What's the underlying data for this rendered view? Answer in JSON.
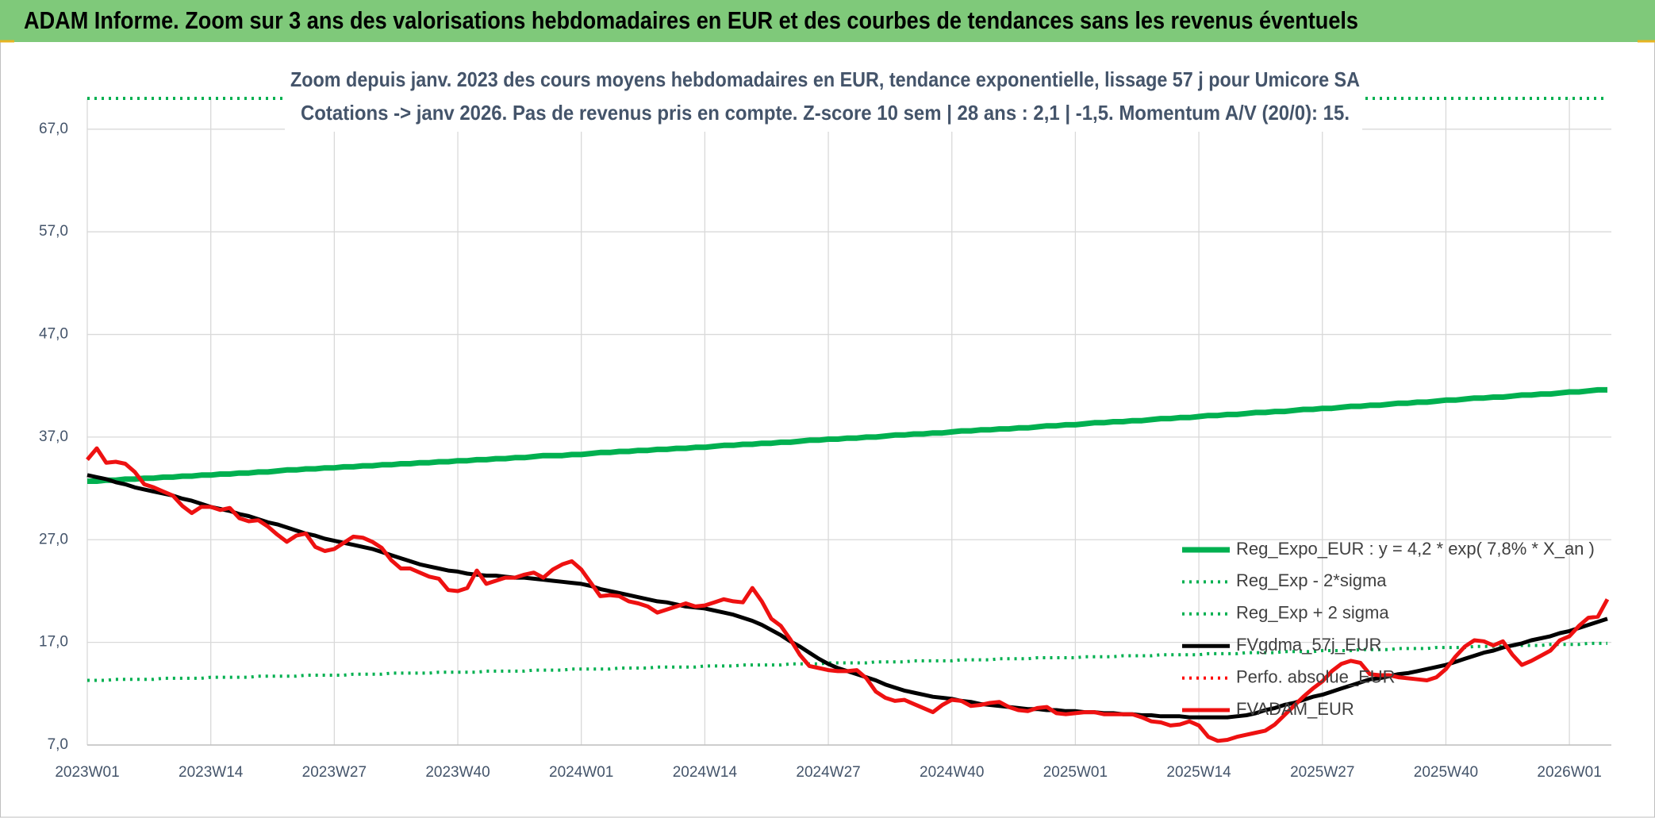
{
  "chart_data": {
    "type": "line",
    "title": "ADAM Informe. Zoom sur 3 ans des valorisations hebdomadaires en EUR et des courbes de tendances sans les revenus éventuels",
    "subtitle": [
      "Zoom depuis janv. 2023 des cours moyens hebdomadaires en EUR, tendance exponentielle, lissage 57 j pour Umicore SA",
      "Cotations -> janv 2026. Pas de revenus pris en compte. Z-score 10 sem | 28 ans : 2,1 | -1,5. Momentum A/V (20/0): 15."
    ],
    "categories": [
      "2023W01",
      null,
      null,
      null,
      null,
      null,
      null,
      null,
      null,
      null,
      null,
      null,
      null,
      "2023W14",
      null,
      null,
      null,
      null,
      null,
      null,
      null,
      null,
      null,
      null,
      null,
      null,
      "2023W27",
      null,
      null,
      null,
      null,
      null,
      null,
      null,
      null,
      null,
      null,
      null,
      null,
      "2023W40",
      null,
      null,
      null,
      null,
      null,
      null,
      null,
      null,
      null,
      null,
      null,
      null,
      "2024W01",
      null,
      null,
      null,
      null,
      null,
      null,
      null,
      null,
      null,
      null,
      null,
      null,
      "2024W14",
      null,
      null,
      null,
      null,
      null,
      null,
      null,
      null,
      null,
      null,
      null,
      null,
      "2024W27",
      null,
      null,
      null,
      null,
      null,
      null,
      null,
      null,
      null,
      null,
      null,
      null,
      "2024W40",
      null,
      null,
      null,
      null,
      null,
      null,
      null,
      null,
      null,
      null,
      null,
      null,
      "2025W01",
      null,
      null,
      null,
      null,
      null,
      null,
      null,
      null,
      null,
      null,
      null,
      null,
      "2025W14",
      null,
      null,
      null,
      null,
      null,
      null,
      null,
      null,
      null,
      null,
      null,
      null,
      "2025W27",
      null,
      null,
      null,
      null,
      null,
      null,
      null,
      null,
      null,
      null,
      null,
      null,
      "2025W40",
      null,
      null,
      null,
      null,
      null,
      null,
      null,
      null,
      null,
      null,
      null,
      null,
      "2026W01",
      null,
      null,
      null,
      null
    ],
    "ylim": [
      7,
      70
    ],
    "yticks": [
      {
        "value": 7,
        "label": "7,0"
      },
      {
        "value": 17,
        "label": "17,0"
      },
      {
        "value": 27,
        "label": "27,0"
      },
      {
        "value": 37,
        "label": "37,0"
      },
      {
        "value": 47,
        "label": "47,0"
      },
      {
        "value": 57,
        "label": "57,0"
      },
      {
        "value": 67,
        "label": "67,0"
      }
    ],
    "grid": true,
    "legend": "lower right",
    "series": [
      {
        "name": "Reg_Expo_EUR : y = 4,2 * exp( 7,8% *  X_an )",
        "color": "#00b050",
        "style": "solid",
        "values": [
          32.7,
          32.7,
          32.8,
          32.8,
          32.9,
          32.9,
          33.0,
          33.0,
          33.1,
          33.1,
          33.2,
          33.2,
          33.3,
          33.3,
          33.4,
          33.4,
          33.5,
          33.5,
          33.6,
          33.6,
          33.7,
          33.8,
          33.8,
          33.9,
          33.9,
          34.0,
          34.0,
          34.1,
          34.1,
          34.2,
          34.2,
          34.3,
          34.3,
          34.4,
          34.4,
          34.5,
          34.5,
          34.6,
          34.6,
          34.7,
          34.7,
          34.8,
          34.8,
          34.9,
          34.9,
          35.0,
          35.0,
          35.1,
          35.2,
          35.2,
          35.2,
          35.3,
          35.3,
          35.4,
          35.5,
          35.5,
          35.6,
          35.6,
          35.7,
          35.7,
          35.8,
          35.8,
          35.9,
          35.9,
          36.0,
          36.0,
          36.1,
          36.2,
          36.2,
          36.3,
          36.3,
          36.4,
          36.4,
          36.5,
          36.5,
          36.6,
          36.7,
          36.7,
          36.8,
          36.8,
          36.9,
          36.9,
          37.0,
          37.0,
          37.1,
          37.2,
          37.2,
          37.3,
          37.3,
          37.4,
          37.4,
          37.5,
          37.6,
          37.6,
          37.7,
          37.7,
          37.8,
          37.8,
          37.9,
          37.9,
          38.0,
          38.1,
          38.1,
          38.2,
          38.2,
          38.3,
          38.4,
          38.4,
          38.5,
          38.5,
          38.6,
          38.6,
          38.7,
          38.8,
          38.8,
          38.9,
          38.9,
          39.0,
          39.1,
          39.1,
          39.2,
          39.2,
          39.3,
          39.4,
          39.4,
          39.5,
          39.5,
          39.6,
          39.7,
          39.7,
          39.8,
          39.8,
          39.9,
          40.0,
          40.0,
          40.1,
          40.1,
          40.2,
          40.3,
          40.3,
          40.4,
          40.4,
          40.5,
          40.6,
          40.6,
          40.7,
          40.8,
          40.8,
          40.9,
          40.9,
          41.0,
          41.1,
          41.1,
          41.2,
          41.2,
          41.3,
          41.4,
          41.4,
          41.5,
          41.6,
          41.6
        ]
      },
      {
        "name": "Reg_Exp - 2*sigma",
        "color": "#00b050",
        "style": "dotted",
        "values": [
          13.3,
          13.3,
          13.3,
          13.4,
          13.4,
          13.4,
          13.4,
          13.4,
          13.5,
          13.5,
          13.5,
          13.5,
          13.5,
          13.6,
          13.6,
          13.6,
          13.6,
          13.6,
          13.7,
          13.7,
          13.7,
          13.7,
          13.7,
          13.8,
          13.8,
          13.8,
          13.8,
          13.8,
          13.9,
          13.9,
          13.9,
          13.9,
          14.0,
          14.0,
          14.0,
          14.0,
          14.0,
          14.1,
          14.1,
          14.1,
          14.1,
          14.1,
          14.2,
          14.2,
          14.2,
          14.2,
          14.2,
          14.3,
          14.3,
          14.3,
          14.3,
          14.4,
          14.4,
          14.4,
          14.4,
          14.4,
          14.5,
          14.5,
          14.5,
          14.5,
          14.6,
          14.6,
          14.6,
          14.6,
          14.6,
          14.7,
          14.7,
          14.7,
          14.7,
          14.8,
          14.8,
          14.8,
          14.8,
          14.8,
          14.9,
          14.9,
          14.9,
          14.9,
          15.0,
          15.0,
          15.0,
          15.0,
          15.0,
          15.1,
          15.1,
          15.1,
          15.1,
          15.2,
          15.2,
          15.2,
          15.2,
          15.2,
          15.3,
          15.3,
          15.3,
          15.3,
          15.4,
          15.4,
          15.4,
          15.4,
          15.5,
          15.5,
          15.5,
          15.5,
          15.5,
          15.6,
          15.6,
          15.6,
          15.6,
          15.7,
          15.7,
          15.7,
          15.7,
          15.8,
          15.8,
          15.8,
          15.8,
          15.8,
          15.9,
          15.9,
          15.9,
          15.9,
          16.0,
          16.0,
          16.0,
          16.0,
          16.1,
          16.1,
          16.1,
          16.1,
          16.2,
          16.2,
          16.2,
          16.2,
          16.3,
          16.3,
          16.3,
          16.3,
          16.4,
          16.4,
          16.4,
          16.4,
          16.5,
          16.5,
          16.5,
          16.5,
          16.6,
          16.6,
          16.6,
          16.6,
          16.7,
          16.7,
          16.7,
          16.7,
          16.8,
          16.8,
          16.8,
          16.8,
          16.9,
          16.9,
          16.9
        ]
      },
      {
        "name": "Reg_Exp + 2 sigma",
        "color": "#00b050",
        "style": "dotted",
        "values": [
          70,
          70,
          70,
          70,
          70,
          70,
          70,
          70,
          70,
          70,
          70,
          70,
          70,
          70,
          70,
          70,
          70,
          70,
          70,
          70,
          70,
          70,
          70,
          70,
          70,
          70,
          70,
          70,
          70,
          70,
          70,
          70,
          70,
          70,
          70,
          70,
          70,
          70,
          70,
          70,
          70,
          70,
          70,
          70,
          70,
          70,
          70,
          70,
          70,
          70,
          70,
          70,
          70,
          70,
          70,
          70,
          70,
          70,
          70,
          70,
          70,
          70,
          70,
          70,
          70,
          70,
          70,
          70,
          70,
          70,
          70,
          70,
          70,
          70,
          70,
          70,
          70,
          70,
          70,
          70,
          70,
          70,
          70,
          70,
          70,
          70,
          70,
          70,
          70,
          70,
          70,
          70,
          70,
          70,
          70,
          70,
          70,
          70,
          70,
          70,
          70,
          70,
          70,
          70,
          70,
          70,
          70,
          70,
          70,
          70,
          70,
          70,
          70,
          70,
          70,
          70,
          70,
          70,
          70,
          70,
          70,
          70,
          70,
          70,
          70,
          70,
          70,
          70,
          70,
          70,
          70,
          70,
          70,
          70,
          70,
          70,
          70,
          70,
          70,
          70,
          70,
          70,
          70,
          70,
          70,
          70,
          70,
          70,
          70,
          70,
          70,
          70,
          70,
          70,
          70,
          70,
          70,
          70,
          70,
          70,
          70
        ]
      },
      {
        "name": "FVgdma_57j_EUR",
        "color": "#000000",
        "style": "solid",
        "values": [
          33.3,
          33.1,
          32.9,
          32.6,
          32.4,
          32.1,
          31.9,
          31.7,
          31.5,
          31.3,
          31.0,
          30.8,
          30.5,
          30.2,
          30.0,
          29.8,
          29.5,
          29.3,
          29.0,
          28.7,
          28.5,
          28.2,
          27.9,
          27.6,
          27.4,
          27.1,
          26.9,
          26.7,
          26.5,
          26.3,
          26.1,
          25.8,
          25.5,
          25.2,
          24.9,
          24.6,
          24.4,
          24.2,
          24.0,
          23.9,
          23.7,
          23.6,
          23.5,
          23.5,
          23.4,
          23.3,
          23.3,
          23.2,
          23.1,
          23.0,
          22.9,
          22.8,
          22.7,
          22.5,
          22.2,
          22.0,
          21.8,
          21.6,
          21.4,
          21.2,
          21.0,
          20.9,
          20.7,
          20.5,
          20.4,
          20.3,
          20.1,
          19.9,
          19.7,
          19.4,
          19.1,
          18.7,
          18.2,
          17.7,
          17.1,
          16.6,
          16.0,
          15.4,
          14.9,
          14.5,
          14.2,
          13.9,
          13.6,
          13.3,
          12.9,
          12.6,
          12.3,
          12.1,
          11.9,
          11.7,
          11.6,
          11.5,
          11.3,
          11.2,
          11.0,
          10.9,
          10.8,
          10.7,
          10.6,
          10.5,
          10.5,
          10.4,
          10.4,
          10.3,
          10.3,
          10.2,
          10.2,
          10.1,
          10.1,
          10.0,
          10.0,
          9.9,
          9.9,
          9.8,
          9.8,
          9.8,
          9.7,
          9.7,
          9.7,
          9.7,
          9.7,
          9.8,
          9.9,
          10.1,
          10.4,
          10.6,
          10.9,
          11.1,
          11.4,
          11.7,
          11.9,
          12.2,
          12.5,
          12.8,
          13.1,
          13.4,
          13.5,
          13.7,
          13.9,
          14.0,
          14.2,
          14.4,
          14.6,
          14.8,
          15.1,
          15.4,
          15.7,
          16.0,
          16.2,
          16.5,
          16.7,
          16.9,
          17.2,
          17.4,
          17.6,
          17.9,
          18.1,
          18.4,
          18.7,
          19.0,
          19.3
        ]
      },
      {
        "name": "Perfo. absolue_EUR",
        "color": "#ff0000",
        "style": "dotted"
      },
      {
        "name": "FVADAM_EUR",
        "color": "#ee1111",
        "style": "solid",
        "values": [
          34.8,
          35.9,
          34.5,
          34.6,
          34.4,
          33.6,
          32.4,
          32.1,
          31.7,
          31.3,
          30.3,
          29.6,
          30.2,
          30.2,
          29.9,
          30.1,
          29.1,
          28.8,
          28.9,
          28.3,
          27.5,
          26.8,
          27.4,
          27.6,
          26.3,
          25.9,
          26.1,
          26.7,
          27.3,
          27.2,
          26.8,
          26.2,
          25.0,
          24.2,
          24.2,
          23.8,
          23.4,
          23.2,
          22.1,
          22.0,
          22.3,
          24.0,
          22.7,
          23.0,
          23.3,
          23.3,
          23.6,
          23.8,
          23.3,
          24.1,
          24.6,
          24.9,
          24.1,
          22.8,
          21.5,
          21.6,
          21.5,
          21.0,
          20.8,
          20.5,
          19.9,
          20.2,
          20.5,
          20.8,
          20.5,
          20.6,
          20.9,
          21.2,
          21.0,
          20.9,
          22.3,
          21.0,
          19.3,
          18.6,
          17.3,
          15.8,
          14.7,
          14.5,
          14.3,
          14.2,
          14.2,
          14.3,
          13.5,
          12.2,
          11.6,
          11.3,
          11.4,
          11.0,
          10.6,
          10.2,
          10.9,
          11.4,
          11.3,
          10.8,
          10.9,
          11.1,
          11.2,
          10.7,
          10.4,
          10.3,
          10.6,
          10.7,
          10.1,
          10.0,
          10.1,
          10.2,
          10.2,
          10.0,
          10.0,
          10.0,
          10.0,
          9.7,
          9.3,
          9.2,
          8.9,
          9.0,
          9.3,
          8.9,
          7.8,
          7.4,
          7.5,
          7.8,
          8.0,
          8.2,
          8.4,
          9.0,
          9.9,
          10.8,
          11.7,
          12.5,
          13.2,
          14.2,
          14.9,
          15.2,
          15.0,
          13.9,
          13.8,
          13.8,
          13.6,
          13.5,
          13.4,
          13.3,
          13.6,
          14.4,
          15.6,
          16.6,
          17.2,
          17.1,
          16.7,
          17.1,
          15.8,
          14.8,
          15.2,
          15.7,
          16.2,
          17.2,
          17.6,
          18.6,
          19.4,
          19.5,
          21.2
        ]
      }
    ]
  }
}
